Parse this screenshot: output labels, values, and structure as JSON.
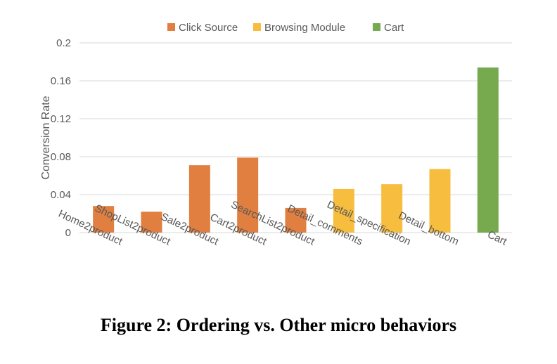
{
  "chart_data": {
    "type": "bar",
    "title": "",
    "xlabel": "",
    "ylabel": "Conversion Rate",
    "ylim": [
      0,
      0.2
    ],
    "yticks": [
      "0",
      "0.04",
      "0.08",
      "0.12",
      "0.16",
      "0.2"
    ],
    "ytick_values": [
      0,
      0.04,
      0.08,
      0.12,
      0.16,
      0.2
    ],
    "grid": true,
    "legend_position": "top-center",
    "categories": [
      "Home2product",
      "ShopList2product",
      "Sale2product",
      "Cart2product",
      "SearchList2product",
      "Detail_comments",
      "Detail_specification",
      "Detail_bottom",
      "Cart"
    ],
    "series": [
      {
        "name": "Click Source",
        "color": "#e07f3f",
        "values": [
          0.028,
          0.022,
          0.071,
          0.079,
          0.026,
          null,
          null,
          null,
          null
        ]
      },
      {
        "name": "Browsing Module",
        "color": "#f7bd3f",
        "values": [
          null,
          null,
          null,
          null,
          null,
          0.046,
          0.051,
          0.067,
          null
        ]
      },
      {
        "name": "Cart",
        "color": "#77a94f",
        "values": [
          null,
          null,
          null,
          null,
          null,
          null,
          null,
          null,
          0.174
        ]
      }
    ]
  },
  "caption": "Figure 2: Ordering vs. Other micro behaviors"
}
